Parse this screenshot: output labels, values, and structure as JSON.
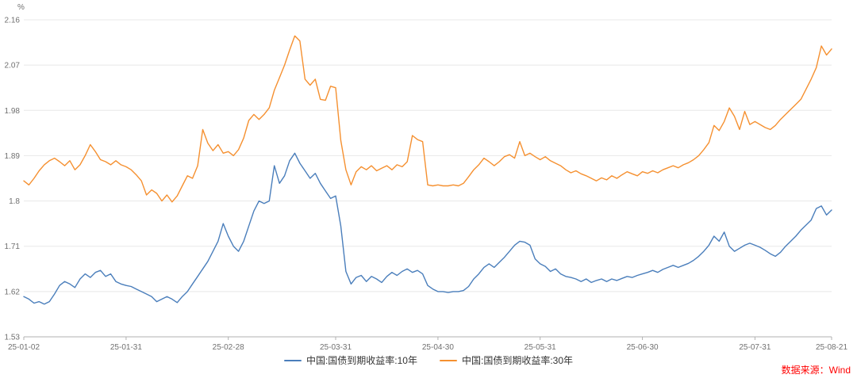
{
  "chart_data": {
    "type": "line",
    "title": "",
    "y_unit": "%",
    "ylim": [
      1.53,
      2.16
    ],
    "grid": true,
    "legend_position": "bottom",
    "y_ticks": [
      "1.53",
      "1.62",
      "1.71",
      "1.8",
      "1.89",
      "1.98",
      "2.07",
      "2.16"
    ],
    "x_tick_labels": [
      "25-01-02",
      "25-01-31",
      "25-02-28",
      "25-03-31",
      "25-04-30",
      "25-05-31",
      "25-06-30",
      "25-07-31",
      "25-08-21"
    ],
    "x_tick_indices": [
      0,
      20,
      40,
      61,
      81,
      101,
      121,
      143,
      158
    ],
    "series": [
      {
        "name": "中国:国债到期收益率:10年",
        "color": "#4a7ebb",
        "values": [
          1.61,
          1.605,
          1.597,
          1.6,
          1.595,
          1.6,
          1.615,
          1.632,
          1.64,
          1.635,
          1.628,
          1.645,
          1.655,
          1.648,
          1.658,
          1.662,
          1.65,
          1.655,
          1.64,
          1.635,
          1.632,
          1.63,
          1.625,
          1.62,
          1.615,
          1.61,
          1.6,
          1.605,
          1.61,
          1.605,
          1.598,
          1.61,
          1.62,
          1.635,
          1.65,
          1.665,
          1.68,
          1.7,
          1.72,
          1.755,
          1.73,
          1.71,
          1.7,
          1.72,
          1.75,
          1.78,
          1.8,
          1.795,
          1.8,
          1.87,
          1.835,
          1.85,
          1.88,
          1.895,
          1.875,
          1.86,
          1.845,
          1.855,
          1.835,
          1.82,
          1.805,
          1.81,
          1.75,
          1.66,
          1.635,
          1.648,
          1.652,
          1.64,
          1.65,
          1.645,
          1.638,
          1.65,
          1.658,
          1.652,
          1.66,
          1.665,
          1.658,
          1.662,
          1.655,
          1.632,
          1.625,
          1.62,
          1.62,
          1.618,
          1.62,
          1.62,
          1.622,
          1.63,
          1.645,
          1.655,
          1.668,
          1.675,
          1.668,
          1.678,
          1.688,
          1.7,
          1.712,
          1.72,
          1.718,
          1.712,
          1.685,
          1.675,
          1.67,
          1.66,
          1.665,
          1.655,
          1.65,
          1.648,
          1.645,
          1.64,
          1.645,
          1.638,
          1.642,
          1.645,
          1.64,
          1.645,
          1.642,
          1.646,
          1.65,
          1.648,
          1.652,
          1.655,
          1.658,
          1.662,
          1.658,
          1.664,
          1.668,
          1.672,
          1.668,
          1.672,
          1.676,
          1.682,
          1.69,
          1.7,
          1.712,
          1.73,
          1.72,
          1.738,
          1.71,
          1.7,
          1.706,
          1.712,
          1.716,
          1.712,
          1.708,
          1.702,
          1.695,
          1.69,
          1.698,
          1.71,
          1.72,
          1.73,
          1.742,
          1.752,
          1.762,
          1.785,
          1.79,
          1.772,
          1.782
        ]
      },
      {
        "name": "中国:国债到期收益率:30年",
        "color": "#f59030",
        "values": [
          1.84,
          1.832,
          1.845,
          1.86,
          1.872,
          1.88,
          1.885,
          1.878,
          1.87,
          1.88,
          1.862,
          1.872,
          1.89,
          1.912,
          1.898,
          1.882,
          1.878,
          1.872,
          1.88,
          1.872,
          1.868,
          1.862,
          1.852,
          1.84,
          1.812,
          1.822,
          1.815,
          1.8,
          1.812,
          1.798,
          1.81,
          1.83,
          1.85,
          1.845,
          1.87,
          1.942,
          1.915,
          1.9,
          1.912,
          1.895,
          1.898,
          1.89,
          1.902,
          1.925,
          1.96,
          1.972,
          1.962,
          1.972,
          1.985,
          2.02,
          2.045,
          2.07,
          2.1,
          2.128,
          2.118,
          2.042,
          2.03,
          2.042,
          2.002,
          2.0,
          2.028,
          2.025,
          1.92,
          1.862,
          1.832,
          1.858,
          1.868,
          1.862,
          1.87,
          1.86,
          1.865,
          1.87,
          1.862,
          1.872,
          1.868,
          1.878,
          1.93,
          1.922,
          1.918,
          1.832,
          1.83,
          1.832,
          1.83,
          1.83,
          1.832,
          1.83,
          1.835,
          1.848,
          1.862,
          1.872,
          1.885,
          1.878,
          1.87,
          1.878,
          1.888,
          1.892,
          1.885,
          1.918,
          1.89,
          1.895,
          1.888,
          1.882,
          1.888,
          1.88,
          1.875,
          1.87,
          1.862,
          1.856,
          1.86,
          1.854,
          1.85,
          1.845,
          1.84,
          1.846,
          1.842,
          1.85,
          1.845,
          1.852,
          1.858,
          1.854,
          1.85,
          1.858,
          1.855,
          1.86,
          1.856,
          1.862,
          1.866,
          1.87,
          1.866,
          1.872,
          1.876,
          1.882,
          1.89,
          1.902,
          1.916,
          1.95,
          1.94,
          1.958,
          1.985,
          1.968,
          1.942,
          1.978,
          1.952,
          1.958,
          1.952,
          1.946,
          1.942,
          1.95,
          1.962,
          1.972,
          1.982,
          1.992,
          2.002,
          2.022,
          2.042,
          2.065,
          2.108,
          2.09,
          2.102
        ]
      }
    ]
  },
  "source": {
    "label": "数据来源：Wind",
    "color": "#ff0000"
  }
}
